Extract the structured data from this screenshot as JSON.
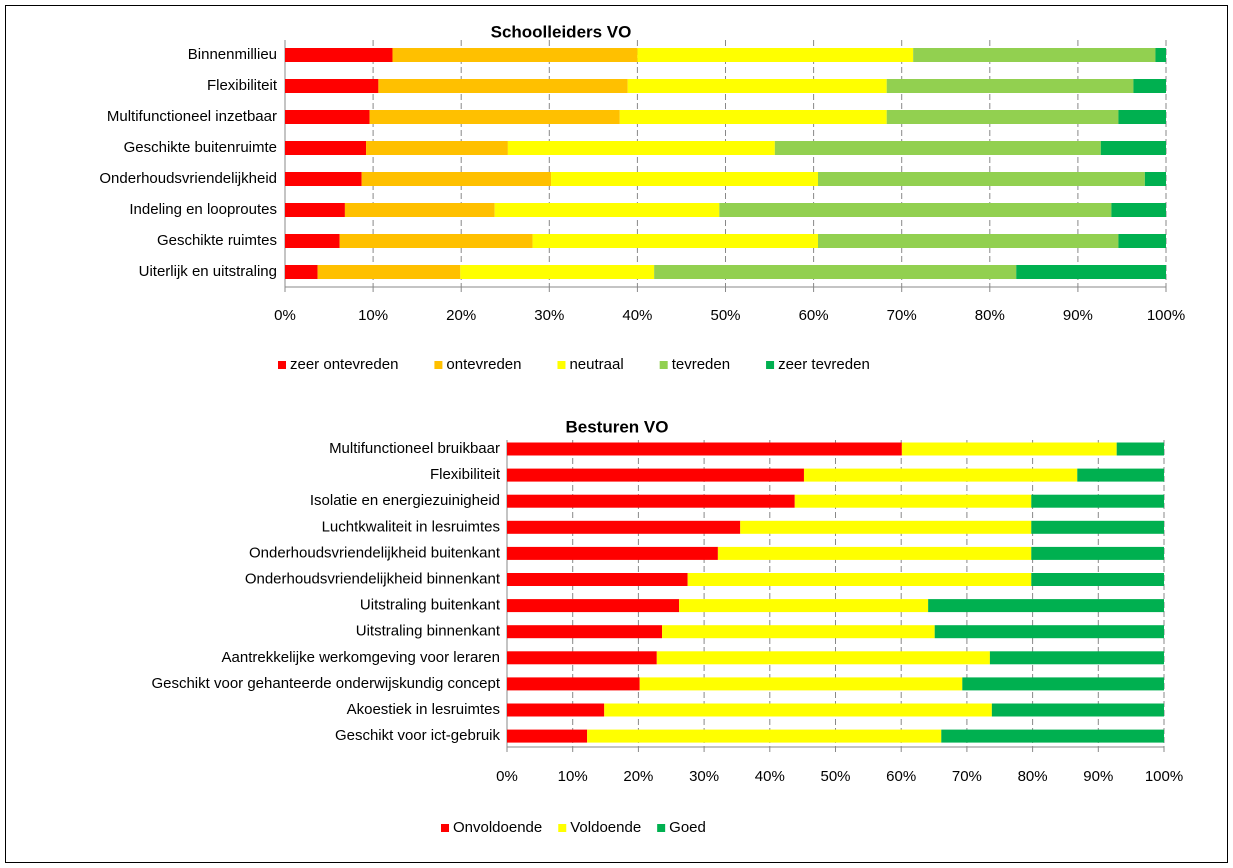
{
  "chart_data": [
    {
      "type": "stacked-bar-horizontal",
      "title": "Schoolleiders VO",
      "categories": [
        "Binnenmillieu",
        "Flexibiliteit",
        "Multifunctioneel inzetbaar",
        "Geschikte buitenruimte",
        "Onderhoudsvriendelijkheid",
        "Indeling en looproutes",
        "Geschikte ruimtes",
        "Uiterlijk en uitstraling"
      ],
      "series": [
        {
          "name": "zeer ontevreden",
          "color": "#ff0000",
          "values": [
            12.2,
            10.6,
            9.6,
            9.2,
            8.7,
            6.8,
            6.2,
            3.7
          ]
        },
        {
          "name": "ontevreden",
          "color": "#ffc000",
          "values": [
            27.8,
            28.3,
            28.4,
            16.1,
            21.5,
            17,
            21.9,
            16.2
          ]
        },
        {
          "name": "neutraal",
          "color": "#ffff00",
          "values": [
            31.3,
            29.4,
            30.3,
            30.3,
            30.3,
            25.5,
            32.4,
            22
          ]
        },
        {
          "name": "tevreden",
          "color": "#92d050",
          "values": [
            27.5,
            28,
            26.3,
            37,
            37.1,
            44.5,
            34.1,
            41.1
          ]
        },
        {
          "name": "zeer tevreden",
          "color": "#00b050",
          "values": [
            1.2,
            3.7,
            5.4,
            7.4,
            2.4,
            6.2,
            5.4,
            17
          ]
        }
      ],
      "xlim": [
        0,
        100
      ],
      "xticks": [
        {
          "value": 0,
          "label": "0%"
        },
        {
          "value": 10,
          "label": "10%"
        },
        {
          "value": 20,
          "label": "20%"
        },
        {
          "value": 30,
          "label": "30%"
        },
        {
          "value": 40,
          "label": "40%"
        },
        {
          "value": 50,
          "label": "50%"
        },
        {
          "value": 60,
          "label": "60%"
        },
        {
          "value": 70,
          "label": "70%"
        },
        {
          "value": 80,
          "label": "80%"
        },
        {
          "value": 90,
          "label": "90%"
        },
        {
          "value": 100,
          "label": "100%"
        }
      ],
      "grid": true,
      "legend": "bottom"
    },
    {
      "type": "stacked-bar-horizontal",
      "title": "Besturen VO",
      "categories": [
        "Multifunctioneel bruikbaar",
        "Flexibiliteit",
        "Isolatie en energiezuinigheid",
        "Luchtkwaliteit in lesruimtes",
        "Onderhoudsvriendelijkheid buitenkant",
        "Onderhoudsvriendelijkheid binnenkant",
        "Uitstraling buitenkant",
        "Uitstraling binnenkant",
        "Aantrekkelijke werkomgeving voor leraren",
        "Geschikt voor gehanteerde onderwijskundig concept",
        "Akoestiek in lesruimtes",
        "Geschikt voor ict-gebruik"
      ],
      "series": [
        {
          "name": "Onvoldoende",
          "color": "#ff0000",
          "values": [
            60.1,
            45.2,
            43.8,
            35.5,
            32.1,
            27.5,
            26.2,
            23.6,
            22.8,
            20.2,
            14.8,
            12.2
          ]
        },
        {
          "name": "Voldoende",
          "color": "#ffff00",
          "values": [
            32.7,
            41.6,
            36,
            44.3,
            47.7,
            52.3,
            37.9,
            41.5,
            50.7,
            49.1,
            59,
            53.9
          ]
        },
        {
          "name": "Goed",
          "color": "#00b050",
          "values": [
            7.2,
            13.2,
            20.2,
            20.2,
            20.2,
            20.2,
            35.9,
            34.9,
            26.5,
            30.7,
            26.2,
            33.9
          ]
        }
      ],
      "xlim": [
        0,
        100
      ],
      "xticks": [
        {
          "value": 0,
          "label": "0%"
        },
        {
          "value": 10,
          "label": "10%"
        },
        {
          "value": 20,
          "label": "20%"
        },
        {
          "value": 30,
          "label": "30%"
        },
        {
          "value": 40,
          "label": "40%"
        },
        {
          "value": 50,
          "label": "50%"
        },
        {
          "value": 60,
          "label": "60%"
        },
        {
          "value": 70,
          "label": "70%"
        },
        {
          "value": 80,
          "label": "80%"
        },
        {
          "value": 90,
          "label": "90%"
        },
        {
          "value": 100,
          "label": "100%"
        }
      ],
      "grid": true,
      "legend": "bottom"
    }
  ]
}
